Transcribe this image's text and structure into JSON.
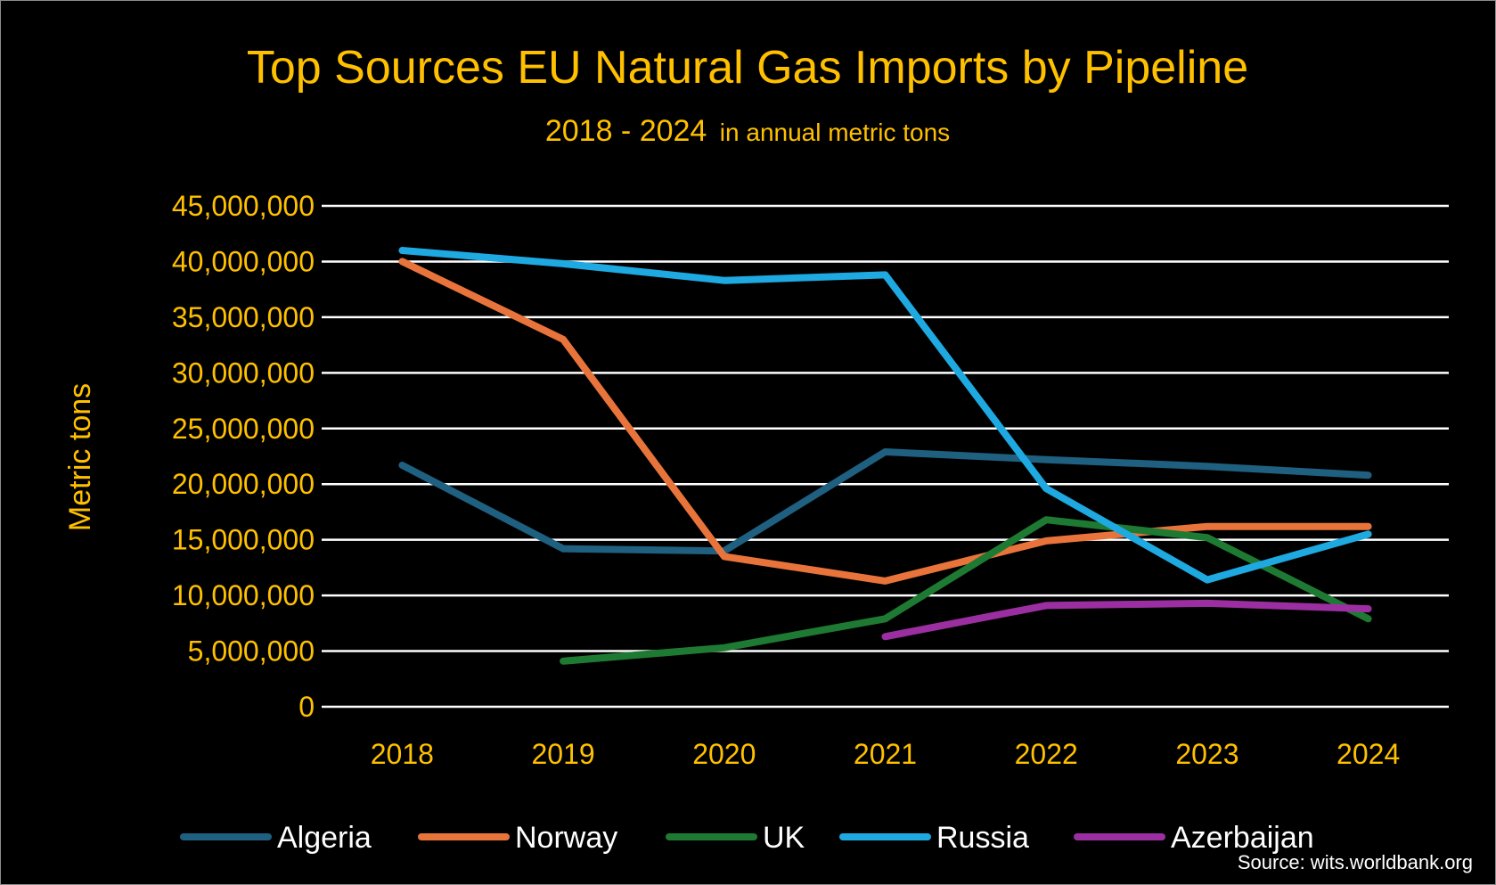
{
  "chart_data": {
    "type": "line",
    "title": "Top Sources EU Natural Gas Imports by Pipeline",
    "subtitle_main": "2018 - 2024",
    "subtitle_small": "in annual metric tons",
    "xlabel": "",
    "ylabel": "Metric tons",
    "categories": [
      "2018",
      "2019",
      "2020",
      "2021",
      "2022",
      "2023",
      "2024"
    ],
    "ylim": [
      0,
      45000000
    ],
    "y_ticks": [
      0,
      5000000,
      10000000,
      15000000,
      20000000,
      25000000,
      30000000,
      35000000,
      40000000,
      45000000
    ],
    "y_tick_labels": [
      "0",
      "5,000,000",
      "10,000,000",
      "15,000,000",
      "20,000,000",
      "25,000,000",
      "30,000,000",
      "35,000,000",
      "40,000,000",
      "45,000,000"
    ],
    "grid": true,
    "legend_position": "bottom",
    "series": [
      {
        "name": "Algeria",
        "color": "#1f5f80",
        "values": [
          21700000,
          14200000,
          14000000,
          22900000,
          22200000,
          21600000,
          20800000
        ]
      },
      {
        "name": "Norway",
        "color": "#e8743b",
        "values": [
          40000000,
          33000000,
          13500000,
          11300000,
          14900000,
          16200000,
          16200000
        ]
      },
      {
        "name": "UK",
        "color": "#1e7a32",
        "values": [
          null,
          4100000,
          5300000,
          7900000,
          16800000,
          15200000,
          7900000
        ]
      },
      {
        "name": "Russia",
        "color": "#1ea9e1",
        "values": [
          41000000,
          39800000,
          38300000,
          38800000,
          19600000,
          11400000,
          15500000
        ]
      },
      {
        "name": "Azerbaijan",
        "color": "#9b2fa1",
        "values": [
          null,
          null,
          null,
          6300000,
          9100000,
          9300000,
          8800000
        ]
      }
    ],
    "source": "Source: wits.worldbank.org"
  },
  "colors": {
    "background": "#000000",
    "accent_text": "#ffc000",
    "gridline": "#ffffff",
    "legend_text": "#ffffff"
  }
}
